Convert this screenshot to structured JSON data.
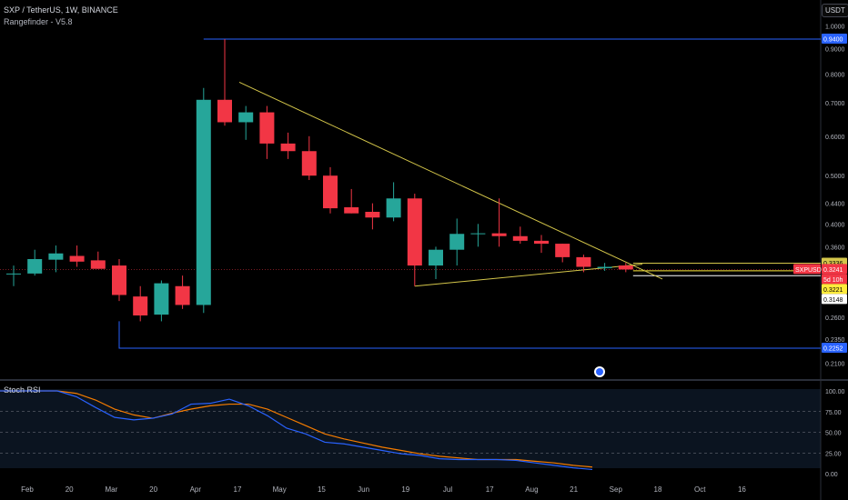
{
  "header": {
    "symbol_title": "SXP / TetherUS, 1W, BINANCE",
    "indicator": "Rangefinder - V5.8",
    "currency_button": "USDT",
    "rsi_title": "Stoch RSI"
  },
  "colors": {
    "background": "#000000",
    "up": "#26a69a",
    "down": "#f23645",
    "range_line": "#2962ff",
    "trend_line": "#d4c64a",
    "stoch_k": "#2962ff",
    "stoch_d": "#f57c00",
    "axis_text": "#d1d4dc"
  },
  "price_axis": {
    "ticks": [
      "1.0000",
      "0.9000",
      "0.8000",
      "0.7000",
      "0.6000",
      "0.5000",
      "0.4400",
      "0.4000",
      "0.3600",
      "0.2600",
      "0.2350",
      "0.2100"
    ],
    "labels": [
      {
        "text": "0.9400",
        "value": 0.94,
        "bg": "#2962ff",
        "fg": "#ffffff"
      },
      {
        "text": "0.3336",
        "value": 0.3336,
        "bg": "#d4c64a",
        "fg": "#000000"
      },
      {
        "text": "SXPUSDT",
        "value": 0.3241,
        "bg": "#f23645",
        "fg": "#ffffff",
        "left": true
      },
      {
        "text": "0.3241",
        "value": 0.3241,
        "bg": "#f23645",
        "fg": "#ffffff"
      },
      {
        "text": "5d 10h",
        "value": 0.3241,
        "bg": "#f23645",
        "fg": "#ffffff",
        "sub": true
      },
      {
        "text": "0.3221",
        "value": 0.3221,
        "bg": "#ffeb3b",
        "fg": "#000000"
      },
      {
        "text": "0.3148",
        "value": 0.3148,
        "bg": "#ffffff",
        "fg": "#000000"
      },
      {
        "text": "0.2252",
        "value": 0.2252,
        "bg": "#2962ff",
        "fg": "#ffffff"
      }
    ]
  },
  "rsi_axis": {
    "ticks": [
      "100.00",
      "75.00",
      "50.00",
      "25.00",
      "0.00"
    ]
  },
  "time_axis": [
    "Feb",
    "20",
    "Mar",
    "20",
    "Apr",
    "17",
    "May",
    "15",
    "Jun",
    "19",
    "Jul",
    "17",
    "Aug",
    "21",
    "Sep",
    "18",
    "Oct",
    "16"
  ],
  "chart_data": {
    "type": "candlestick",
    "interval": "1W",
    "y_scale": "log",
    "ohlc": [
      [
        0.318,
        0.33,
        0.3,
        0.318
      ],
      [
        0.318,
        0.355,
        0.315,
        0.34
      ],
      [
        0.339,
        0.362,
        0.32,
        0.349
      ],
      [
        0.345,
        0.362,
        0.328,
        0.336
      ],
      [
        0.338,
        0.352,
        0.325,
        0.325
      ],
      [
        0.33,
        0.34,
        0.28,
        0.288
      ],
      [
        0.286,
        0.3,
        0.255,
        0.262
      ],
      [
        0.263,
        0.308,
        0.255,
        0.304
      ],
      [
        0.3,
        0.315,
        0.27,
        0.275
      ],
      [
        0.275,
        0.75,
        0.265,
        0.71
      ],
      [
        0.71,
        0.94,
        0.63,
        0.64
      ],
      [
        0.64,
        0.69,
        0.59,
        0.67
      ],
      [
        0.67,
        0.69,
        0.54,
        0.58
      ],
      [
        0.58,
        0.61,
        0.54,
        0.56
      ],
      [
        0.56,
        0.6,
        0.49,
        0.5
      ],
      [
        0.5,
        0.52,
        0.42,
        0.43
      ],
      [
        0.432,
        0.47,
        0.42,
        0.42
      ],
      [
        0.423,
        0.44,
        0.39,
        0.412
      ],
      [
        0.412,
        0.485,
        0.405,
        0.45
      ],
      [
        0.45,
        0.46,
        0.3,
        0.33
      ],
      [
        0.33,
        0.36,
        0.31,
        0.355
      ],
      [
        0.355,
        0.41,
        0.33,
        0.382
      ],
      [
        0.383,
        0.4,
        0.36,
        0.383
      ],
      [
        0.383,
        0.45,
        0.36,
        0.378
      ],
      [
        0.378,
        0.395,
        0.365,
        0.37
      ],
      [
        0.37,
        0.38,
        0.35,
        0.365
      ],
      [
        0.365,
        0.365,
        0.335,
        0.343
      ],
      [
        0.343,
        0.347,
        0.32,
        0.328
      ],
      [
        0.326,
        0.334,
        0.322,
        0.328
      ],
      [
        0.33,
        0.334,
        0.32,
        0.324
      ]
    ],
    "range_high": 0.94,
    "range_low": 0.2252,
    "levels": [
      0.3336,
      0.3221,
      0.3148
    ],
    "stoch_rsi": {
      "k": [
        100,
        100,
        100,
        100,
        93,
        80,
        68,
        65,
        67,
        72,
        84,
        85,
        90,
        82,
        70,
        55,
        48,
        38,
        36,
        32,
        28,
        24,
        22,
        18,
        17,
        17,
        17,
        16,
        13,
        10,
        7,
        5
      ],
      "d": [
        100,
        100,
        100,
        100,
        97,
        89,
        78,
        71,
        67,
        73,
        78,
        82,
        84,
        84,
        78,
        68,
        58,
        48,
        42,
        37,
        32,
        28,
        24,
        21,
        19,
        17,
        17,
        17,
        15,
        13,
        10,
        8
      ]
    }
  }
}
